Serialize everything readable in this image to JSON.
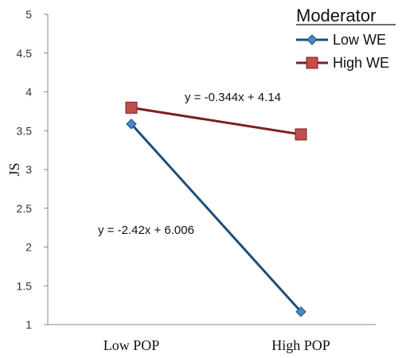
{
  "chart_data": {
    "type": "line",
    "categories": [
      "Low POP",
      "High POP"
    ],
    "ylabel": "JS",
    "ylim": [
      1,
      5
    ],
    "yticks": [
      "1",
      "1.5",
      "2",
      "2.5",
      "3",
      "3.5",
      "4",
      "4.5",
      "5"
    ],
    "grid": false,
    "legend": {
      "title": "Moderator",
      "position": "top-right"
    },
    "series": [
      {
        "name": "Low WE",
        "values": [
          3.586,
          1.166
        ],
        "color": "#1f4e79",
        "marker_color": "#4a86c8",
        "marker": "diamond"
      },
      {
        "name": "High WE",
        "values": [
          3.796,
          3.452
        ],
        "color": "#7b2020",
        "marker_color": "#c0504d",
        "marker": "square"
      }
    ],
    "annotations": [
      "y = -0.344x + 4.14",
      "y = -2.42x + 6.006"
    ]
  }
}
